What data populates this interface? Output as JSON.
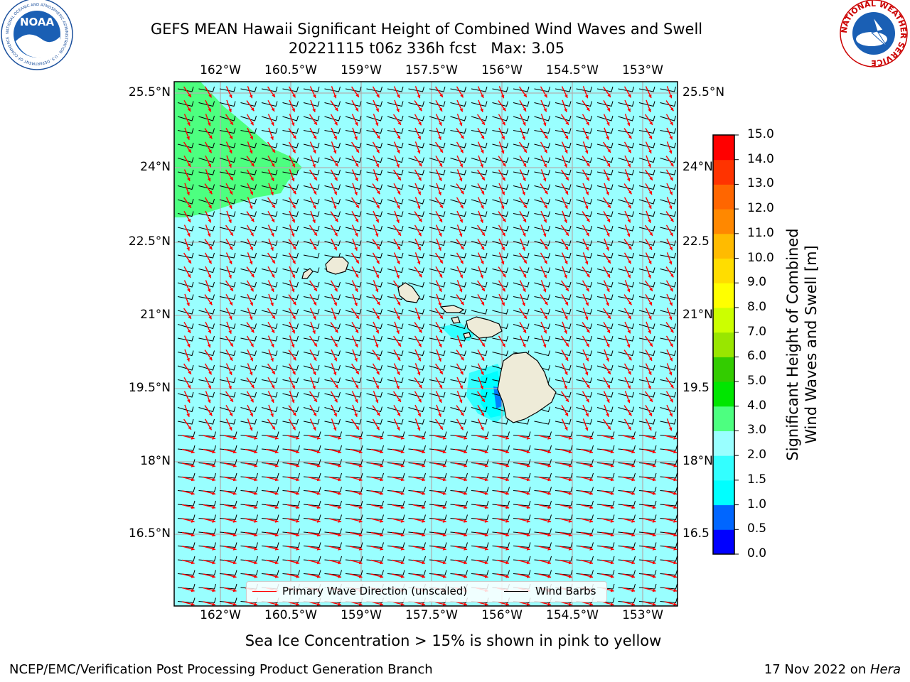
{
  "title": {
    "line1": "GEFS MEAN Hawaii Significant Height of Combined Wind Waves and Swell",
    "line2": "20221115 t06z 336h fcst   Max: 3.05"
  },
  "map": {
    "lon_ticks": [
      "162°W",
      "160.5°W",
      "159°W",
      "157.5°W",
      "156°W",
      "154.5°W",
      "153°W"
    ],
    "lat_ticks": [
      "25.5°N",
      "24°N",
      "22.5°N",
      "21°N",
      "19.5°N",
      "18°N",
      "16.5°N"
    ],
    "right_lat_ticks": [
      "25.5°N",
      "24°N",
      "22.5",
      "21°N",
      "19.5",
      "18°N",
      "16.5"
    ],
    "colors": {
      "ocean": "#99ffff",
      "swell_3_4": "#4dff80",
      "swell_1_5_2": "#33ffff",
      "swell_1_1_5": "#00ffff",
      "swell_0_5_1": "#0080ff",
      "land": "#eeebd8",
      "wave_arrow": "#ff0000",
      "wind_barb": "#000000"
    }
  },
  "legend": {
    "wave_label": "Primary Wave Direction (unscaled)",
    "barb_label": "Wind Barbs"
  },
  "colorbar": {
    "label_line1": "Significant Height of Combined",
    "label_line2": "Wind Waves and Swell [m]",
    "levels": [
      "0.0",
      "0.5",
      "1.0",
      "1.5",
      "2.0",
      "3.0",
      "4.0",
      "5.0",
      "6.0",
      "7.0",
      "8.0",
      "9.0",
      "10.0",
      "11.0",
      "12.0",
      "13.0",
      "14.0",
      "15.0"
    ],
    "colors": [
      "#0000ff",
      "#0066ff",
      "#00ffff",
      "#33ffff",
      "#99ffff",
      "#4dff80",
      "#00e600",
      "#33cc00",
      "#99e600",
      "#ccff00",
      "#ffff00",
      "#ffdd00",
      "#ffbb00",
      "#ff8800",
      "#ff6600",
      "#ff3300",
      "#ff0000"
    ]
  },
  "logos": {
    "noaa_text": "NOAA",
    "noaa_ring": "NATIONAL OCEANIC AND ATMOSPHERIC ADMINISTRATION · U.S. DEPARTMENT OF COMMERCE",
    "nws_ring": "NATIONAL WEATHER SERVICE"
  },
  "sea_ice_note": "Sea Ice Concentration > 15% is shown in pink to yellow",
  "footer": {
    "left": "NCEP/EMC/Verification Post Processing Product Generation Branch",
    "right_date": "17 Nov 2022 on ",
    "right_machine": "Hera"
  }
}
